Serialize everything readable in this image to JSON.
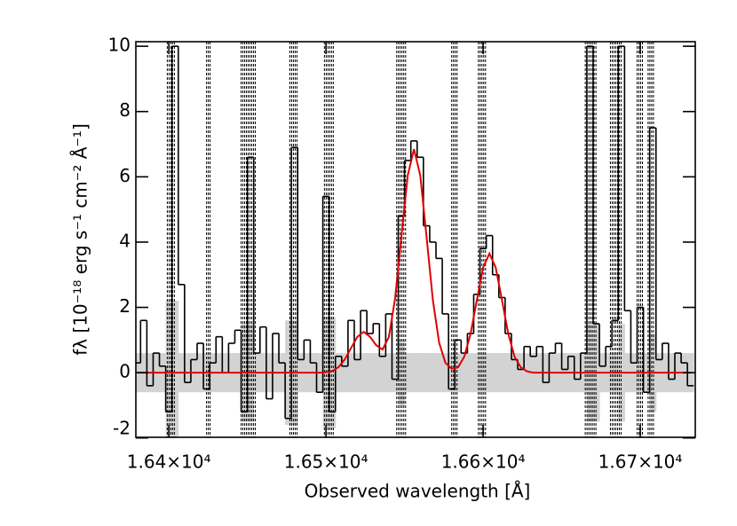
{
  "chart_data": {
    "type": "line",
    "x_label": "Observed wavelength [Å]",
    "y_label": "fλ [10⁻¹⁸ erg s⁻¹ cm⁻² Å⁻¹]",
    "xlim": [
      16379,
      16735
    ],
    "ylim": [
      -1.98,
      10.14
    ],
    "xticks": [
      {
        "value": 16400,
        "label": "1.64×10⁴"
      },
      {
        "value": 16500,
        "label": "1.65×10⁴"
      },
      {
        "value": 16600,
        "label": "1.66×10⁴"
      },
      {
        "value": 16700,
        "label": "1.67×10⁴"
      }
    ],
    "yticks": [
      -2,
      0,
      2,
      4,
      6,
      8,
      10
    ],
    "color": "#000000",
    "model_color": "#e00000",
    "band_color": "#d3d3d3",
    "x": [
      16380,
      16384,
      16388,
      16392,
      16396,
      16400,
      16404,
      16408,
      16412,
      16416,
      16420,
      16424,
      16428,
      16432,
      16436,
      16440,
      16444,
      16448,
      16452,
      16456,
      16460,
      16464,
      16468,
      16472,
      16476,
      16480,
      16484,
      16488,
      16492,
      16496,
      16500,
      16504,
      16508,
      16512,
      16516,
      16520,
      16524,
      16528,
      16532,
      16536,
      16540,
      16544,
      16548,
      16552,
      16556,
      16560,
      16564,
      16568,
      16572,
      16576,
      16580,
      16584,
      16588,
      16592,
      16596,
      16600,
      16604,
      16608,
      16612,
      16616,
      16620,
      16624,
      16628,
      16632,
      16636,
      16640,
      16644,
      16648,
      16652,
      16656,
      16660,
      16664,
      16668,
      16672,
      16676,
      16680,
      16684,
      16688,
      16692,
      16696,
      16700,
      16704,
      16708,
      16712,
      16716,
      16720,
      16724,
      16728,
      16732
    ],
    "values": [
      0.3,
      1.6,
      -0.4,
      0.6,
      0.2,
      -1.2,
      10.0,
      2.7,
      -0.3,
      0.4,
      0.9,
      -0.5,
      0.3,
      1.1,
      0.0,
      0.9,
      1.3,
      -1.2,
      6.6,
      0.6,
      1.4,
      -0.8,
      1.2,
      0.3,
      -1.4,
      6.9,
      0.4,
      1.0,
      0.3,
      -0.6,
      5.4,
      -1.2,
      0.5,
      0.2,
      1.6,
      0.4,
      1.9,
      1.2,
      1.5,
      0.5,
      1.8,
      -0.2,
      4.8,
      6.5,
      7.1,
      6.6,
      4.5,
      4.0,
      3.5,
      1.8,
      -0.5,
      1.0,
      0.6,
      1.2,
      2.4,
      3.8,
      4.2,
      3.0,
      2.3,
      1.2,
      0.4,
      0.1,
      0.8,
      0.5,
      0.8,
      -0.3,
      0.6,
      0.9,
      0.1,
      0.5,
      -0.2,
      0.6,
      10.0,
      1.5,
      0.2,
      0.8,
      1.6,
      10.0,
      1.9,
      0.3,
      2.0,
      -0.6,
      7.5,
      0.4,
      0.9,
      -0.2,
      0.6,
      0.3,
      -0.4
    ],
    "model": [
      0,
      0,
      0,
      0,
      0,
      0,
      0,
      0,
      0,
      0,
      0,
      0,
      0,
      0,
      0,
      0,
      0,
      0,
      0,
      0,
      0,
      0,
      0,
      0,
      0,
      0,
      0,
      0,
      0,
      0,
      0.01,
      0.05,
      0.17,
      0.41,
      0.76,
      1.1,
      1.25,
      1.1,
      0.84,
      0.71,
      1.09,
      2.28,
      4.17,
      6.04,
      6.85,
      6.04,
      4.16,
      2.23,
      0.92,
      0.3,
      0.12,
      0.16,
      0.49,
      1.19,
      2.22,
      3.22,
      3.65,
      3.22,
      2.22,
      1.19,
      0.49,
      0.16,
      0.04,
      0,
      0,
      0,
      0,
      0,
      0,
      0,
      0,
      0,
      0,
      0,
      0,
      0,
      0,
      0,
      0,
      0,
      0,
      0,
      0,
      0,
      0,
      0,
      0,
      0,
      0
    ],
    "error": [
      0.6,
      0.6,
      0.6,
      0.6,
      0.6,
      2.2,
      2.2,
      0.6,
      0.6,
      0.6,
      0.6,
      0.6,
      0.6,
      0.6,
      0.6,
      0.6,
      0.6,
      1.5,
      1.5,
      0.6,
      0.6,
      0.6,
      0.6,
      0.6,
      1.6,
      1.6,
      0.6,
      0.6,
      0.6,
      0.6,
      1.7,
      1.7,
      0.6,
      0.6,
      0.6,
      0.6,
      0.6,
      0.6,
      0.6,
      0.6,
      0.6,
      0.6,
      1.0,
      0.6,
      0.6,
      0.6,
      0.6,
      0.6,
      0.6,
      0.6,
      0.6,
      0.6,
      0.6,
      0.6,
      0.6,
      0.6,
      0.6,
      0.6,
      0.6,
      0.6,
      0.6,
      0.6,
      0.6,
      0.6,
      0.6,
      0.6,
      0.6,
      0.6,
      0.6,
      0.6,
      0.6,
      0.6,
      1.5,
      1.5,
      0.6,
      0.6,
      0.6,
      1.5,
      0.6,
      0.6,
      0.6,
      0.6,
      1.2,
      0.6,
      0.6,
      0.6,
      0.6,
      0.6,
      0.6
    ],
    "masked_regions": [
      [
        16399,
        16404
      ],
      [
        16424,
        16427
      ],
      [
        16446,
        16456
      ],
      [
        16477,
        16482
      ],
      [
        16499,
        16505
      ],
      [
        16545,
        16551
      ],
      [
        16580,
        16584
      ],
      [
        16597,
        16602
      ],
      [
        16665,
        16672
      ],
      [
        16681,
        16688
      ],
      [
        16698,
        16702
      ],
      [
        16705,
        16709
      ]
    ]
  }
}
